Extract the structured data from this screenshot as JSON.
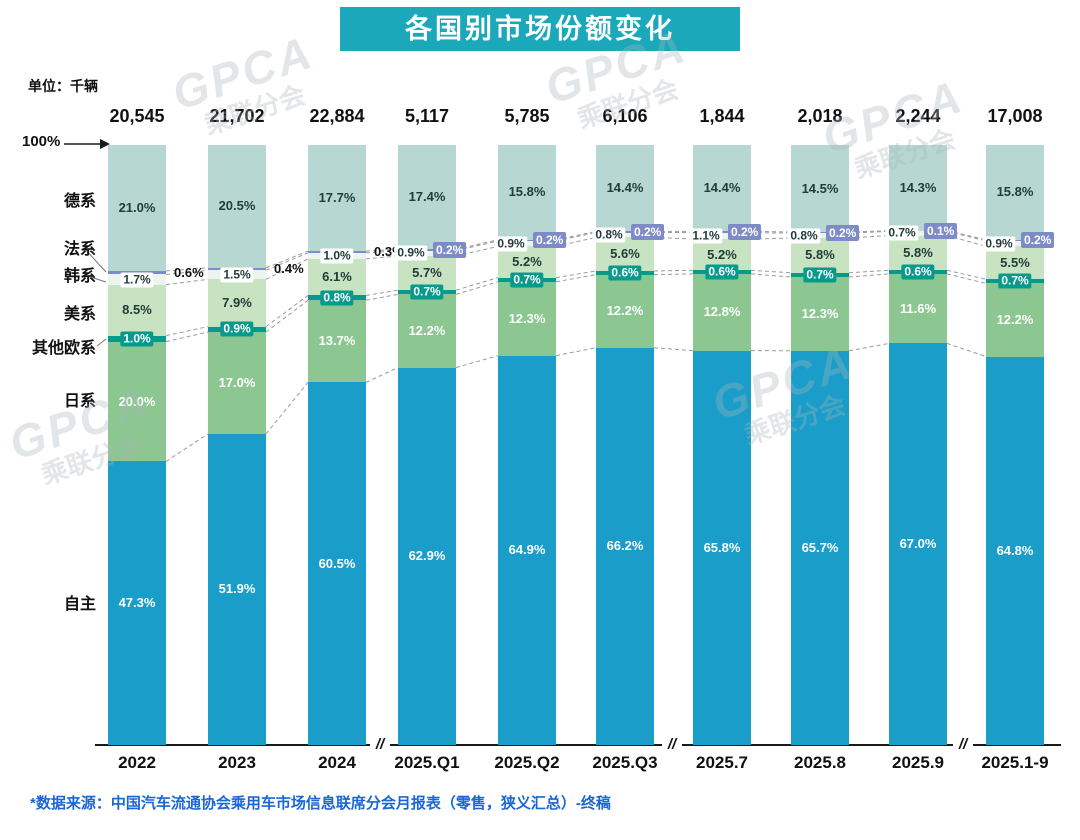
{
  "title": "各国别市场份额变化",
  "unit_label": "单位：千辆",
  "y_axis_top_label": "100%",
  "source_note": "*数据来源：中国汽车流通协会乘用车市场信息联席分会月报表（零售，狭义汇总）-终稿",
  "watermark": {
    "line1": "GPCA",
    "line2": "乘联分会"
  },
  "colors": {
    "header_bg": "#1aa8ba",
    "source_text": "#1a66d6",
    "axis": "#1a1a1a",
    "connector": "#979ca1",
    "french_badge": "#7d8cc9"
  },
  "chart_data": {
    "type": "bar",
    "stacked": true,
    "percent_axis": true,
    "ylim": [
      0,
      100
    ],
    "unit": "千辆",
    "title": "各国别市场份额变化",
    "categories": [
      "2022",
      "2023",
      "2024",
      "2025.Q1",
      "2025.Q2",
      "2025.Q3",
      "2025.7",
      "2025.8",
      "2025.9",
      "2025.1-9"
    ],
    "totals": [
      "20,545",
      "21,702",
      "22,884",
      "5,117",
      "5,785",
      "6,106",
      "1,844",
      "2,018",
      "2,244",
      "17,008"
    ],
    "axis_breaks_after": [
      "2024",
      "2025.Q3",
      "2025.9"
    ],
    "series_order": "top_to_bottom",
    "series": [
      {
        "name": "德系",
        "color": "#b7d8d2",
        "values": [
          21.0,
          20.5,
          17.7,
          17.4,
          15.8,
          14.4,
          14.4,
          14.5,
          14.3,
          15.8
        ]
      },
      {
        "name": "法系",
        "color": "#7d8cc9",
        "values": [
          0.6,
          0.4,
          0.3,
          0.2,
          0.2,
          0.2,
          0.2,
          0.2,
          0.1,
          0.2
        ]
      },
      {
        "name": "韩系",
        "color": "#ebf4ef",
        "values": [
          1.7,
          1.5,
          1.0,
          0.9,
          0.9,
          0.8,
          1.1,
          0.8,
          0.7,
          0.9
        ]
      },
      {
        "name": "美系",
        "color": "#c7e3c2",
        "values": [
          8.5,
          7.9,
          6.1,
          5.7,
          5.2,
          5.6,
          5.2,
          5.8,
          5.8,
          5.5
        ]
      },
      {
        "name": "其他欧系",
        "color": "#069a8d",
        "values": [
          1.0,
          0.9,
          0.8,
          0.7,
          0.7,
          0.6,
          0.6,
          0.7,
          0.6,
          0.7
        ]
      },
      {
        "name": "日系",
        "color": "#8cc791",
        "values": [
          20.0,
          17.0,
          13.7,
          12.2,
          12.3,
          12.2,
          12.8,
          12.3,
          11.6,
          12.2
        ]
      },
      {
        "name": "自主",
        "color": "#1a9ec9",
        "values": [
          47.3,
          51.9,
          60.5,
          62.9,
          64.9,
          66.2,
          65.8,
          65.7,
          67.0,
          64.8
        ]
      }
    ]
  }
}
